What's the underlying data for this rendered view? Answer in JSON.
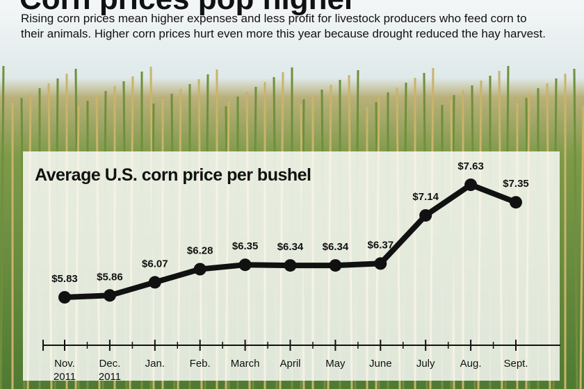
{
  "title": "Corn prices pop higher",
  "subtitle": "Rising corn prices mean higher expenses and less profit for livestock producers who feed corn to their animals. Higher corn prices hurt even more this year because drought reduced the hay harvest.",
  "chart_data": {
    "type": "line",
    "title": "Average U.S. corn price per bushel",
    "categories": [
      "Nov. 2011",
      "Dec. 2011",
      "Jan.",
      "Feb.",
      "March",
      "April",
      "May",
      "June",
      "July",
      "Aug.",
      "Sept."
    ],
    "values": [
      5.83,
      5.86,
      6.07,
      6.28,
      6.35,
      6.34,
      6.34,
      6.37,
      7.14,
      7.63,
      7.35
    ],
    "value_labels": [
      "$5.83",
      "$5.86",
      "$6.07",
      "$6.28",
      "$6.35",
      "$6.34",
      "$6.34",
      "$6.37",
      "$7.14",
      "$7.63",
      "$7.35"
    ],
    "color": "#111111"
  }
}
